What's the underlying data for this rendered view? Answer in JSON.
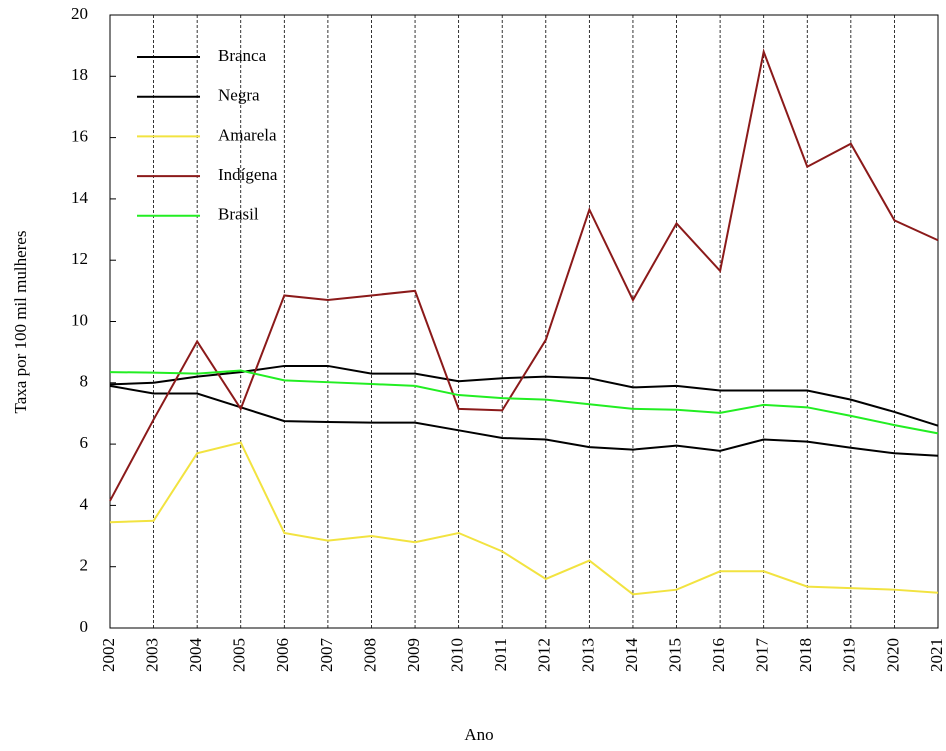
{
  "chart_data": {
    "type": "line",
    "x_label": "Ano",
    "y_label": "Taxa por 100 mil mulheres",
    "x": [
      2002,
      2003,
      2004,
      2005,
      2006,
      2007,
      2008,
      2009,
      2010,
      2011,
      2012,
      2013,
      2014,
      2015,
      2016,
      2017,
      2018,
      2019,
      2020,
      2021
    ],
    "xlim": [
      2002,
      2021
    ],
    "xticks": [
      2002,
      2003,
      2004,
      2005,
      2006,
      2007,
      2008,
      2009,
      2010,
      2011,
      2012,
      2013,
      2014,
      2015,
      2016,
      2017,
      2018,
      2019,
      2020,
      2021
    ],
    "ylim": [
      0,
      20
    ],
    "yticks": [
      0,
      2,
      4,
      6,
      8,
      10,
      12,
      14,
      16,
      18,
      20
    ],
    "grid": "x",
    "legend": "upper-left",
    "series": [
      {
        "name": "Branca",
        "color": "#000000",
        "values": [
          7.9,
          7.65,
          7.65,
          7.2,
          6.75,
          6.72,
          6.7,
          6.7,
          6.45,
          6.2,
          6.15,
          5.9,
          5.82,
          5.95,
          5.78,
          6.15,
          6.08,
          5.88,
          5.7,
          5.62
        ]
      },
      {
        "name": "Negra",
        "color": "#000000",
        "values": [
          7.95,
          8.0,
          8.2,
          8.35,
          8.55,
          8.55,
          8.3,
          8.3,
          8.05,
          8.15,
          8.2,
          8.15,
          7.85,
          7.9,
          7.75,
          7.75,
          7.75,
          7.45,
          7.05,
          6.6
        ]
      },
      {
        "name": "Amarela",
        "color": "#f2e340",
        "values": [
          3.45,
          3.5,
          5.7,
          6.05,
          3.1,
          2.85,
          3.0,
          2.8,
          3.1,
          2.5,
          1.6,
          2.2,
          1.1,
          1.25,
          1.85,
          1.85,
          1.35,
          1.3,
          1.25,
          1.15
        ]
      },
      {
        "name": "Indígena",
        "color": "#8b1a1a",
        "values": [
          4.15,
          6.8,
          9.35,
          7.15,
          10.85,
          10.7,
          10.85,
          11.0,
          7.15,
          7.1,
          9.4,
          13.65,
          10.7,
          13.2,
          11.65,
          18.8,
          15.05,
          15.8,
          13.3,
          12.65
        ]
      },
      {
        "name": "Brasil",
        "color": "#22ee22",
        "values": [
          8.35,
          8.33,
          8.3,
          8.4,
          8.08,
          8.02,
          7.96,
          7.9,
          7.6,
          7.5,
          7.45,
          7.3,
          7.15,
          7.12,
          7.02,
          7.28,
          7.2,
          6.92,
          6.62,
          6.35
        ]
      }
    ]
  }
}
